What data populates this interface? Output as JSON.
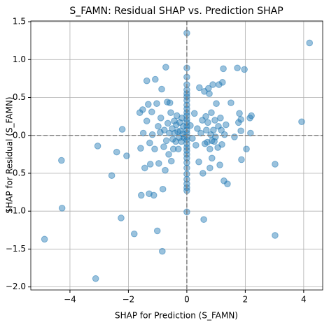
{
  "chart_data": {
    "type": "scatter",
    "title": "S_FAMN: Residual SHAP vs. Prediction SHAP",
    "x_label": "SHAP for Prediction (S_FAMN)",
    "y_label": "SHAP for Residual (S_FAMN)",
    "color": "#1f77b4",
    "grid": true,
    "reference_lines": {
      "x": 0,
      "y": 0
    },
    "xlim": [
      -5.34,
      4.65
    ],
    "ylim": [
      -2.04,
      1.51
    ],
    "xticks": [
      {
        "value": -4,
        "label": "−4"
      },
      {
        "value": -2,
        "label": "−2"
      },
      0,
      2,
      4
    ],
    "yticks": [
      {
        "value": -2,
        "label": "−2.0"
      },
      {
        "value": -1.5,
        "label": "−1.5"
      },
      {
        "value": -1,
        "label": "−1.0"
      },
      {
        "value": -0.5,
        "label": "−0.5"
      },
      {
        "value": 0,
        "label": "0.0"
      },
      {
        "value": 0.5,
        "label": "0.5"
      },
      {
        "value": 1,
        "label": "1.0"
      },
      {
        "value": 1.5,
        "label": "1.5"
      }
    ],
    "x": [
      4.2,
      3.93,
      3.02,
      3.02,
      -4.87,
      -4.27,
      -4.29,
      -3.12,
      -3.05,
      -2.57,
      -2.4,
      -2.25,
      -2.21,
      -2.06,
      -1.8,
      -1.61,
      -1.58,
      -1.56,
      -1.51,
      -1.49,
      -1.44,
      -1.37,
      -1.37,
      -1.32,
      -1.29,
      -1.27,
      -1.25,
      -1.2,
      -1.18,
      -1.13,
      -1.1,
      -1.08,
      -1.03,
      -1.01,
      -0.98,
      -0.96,
      -0.91,
      -0.89,
      -0.86,
      -0.84,
      -0.82,
      -0.79,
      -0.77,
      -0.74,
      -0.72,
      -0.7,
      -0.67,
      -0.65,
      -0.62,
      -0.6,
      -0.58,
      -0.55,
      -0.53,
      -0.5,
      -0.48,
      -0.46,
      -0.43,
      -0.41,
      -0.38,
      -0.36,
      -0.34,
      -0.31,
      -0.29,
      -0.26,
      -0.24,
      -0.22,
      -0.19,
      -0.17,
      -0.14,
      -0.12,
      -0.1,
      0,
      0,
      0,
      0,
      0,
      0,
      0,
      0,
      0,
      0,
      0,
      0,
      0,
      0,
      0,
      0,
      0,
      0,
      0,
      0,
      0,
      0,
      0,
      0,
      0,
      0,
      0,
      0,
      0,
      0,
      0,
      0,
      0.12,
      0.19,
      0.26,
      0.31,
      0.36,
      0.41,
      0.43,
      0.48,
      0.53,
      0.55,
      0.58,
      0.6,
      0.62,
      0.65,
      0.67,
      0.7,
      0.72,
      0.74,
      0.77,
      0.79,
      0.82,
      0.84,
      0.86,
      0.89,
      0.91,
      0.94,
      0.96,
      0.98,
      1.01,
      0.79,
      0.86,
      1.06,
      1.08,
      1.1,
      1.13,
      1.15,
      1.18,
      1.2,
      1.22,
      1.25,
      1.27,
      1.29,
      1.34,
      1.39,
      1.51,
      1.63,
      1.73,
      1.77,
      1.8,
      1.85,
      1.87,
      1.97,
      2.04,
      2.16,
      2.21,
      2.18,
      1.85
    ],
    "y": [
      1.22,
      0.18,
      -0.38,
      -1.32,
      -1.37,
      -0.96,
      -0.33,
      -1.89,
      -0.14,
      -0.53,
      -0.22,
      -1.09,
      0.08,
      -0.27,
      -1.3,
      0.3,
      -0.17,
      -0.79,
      0.34,
      0.03,
      -0.43,
      0.72,
      0.19,
      0.41,
      -0.77,
      -0.1,
      -0.38,
      0.31,
      0.01,
      -0.79,
      -0.18,
      0.74,
      0.42,
      -1.26,
      0.12,
      -0.37,
      0.04,
      0.23,
      0.61,
      -1.53,
      -0.71,
      -0.15,
      0.07,
      -0.46,
      0.9,
      -0.07,
      0.44,
      0.16,
      -0.25,
      0.03,
      0.43,
      0.3,
      -0.34,
      0.09,
      -0.05,
      -0.18,
      0.19,
      0.03,
      -0.08,
      0.14,
      0.26,
      0.05,
      -0.18,
      -0.03,
      0.17,
      0.06,
      -0.08,
      0.23,
      0.02,
      0.12,
      -0.03,
      1.35,
      0.89,
      0.77,
      0.67,
      0.6,
      0.55,
      0.51,
      0.46,
      0.4,
      0.35,
      0.3,
      0.26,
      0.21,
      0.17,
      0.12,
      0.07,
      0.03,
      -0.02,
      -0.06,
      -0.11,
      -0.16,
      -0.2,
      -0.25,
      -0.3,
      -0.36,
      -0.43,
      -0.51,
      -0.58,
      -0.64,
      -0.69,
      -0.73,
      -1.01,
      0.13,
      -0.04,
      0.29,
      -0.13,
      0.09,
      -0.35,
      0.63,
      0.03,
      0.2,
      -0.5,
      -1.11,
      0.58,
      -0.11,
      0.25,
      0.07,
      -0.09,
      0.17,
      0.62,
      0.55,
      -0.18,
      0.01,
      0.3,
      -0.07,
      0.67,
      0.07,
      -0.08,
      0.2,
      -0.02,
      0.42,
      -0.43,
      -0.3,
      -0.16,
      0.12,
      0.67,
      -0.39,
      0.23,
      0.07,
      -0.12,
      0.7,
      0.88,
      -0.6,
      0.01,
      0.14,
      -0.64,
      0.43,
      -0.02,
      0.89,
      0.17,
      0.29,
      0.06,
      -0.32,
      0.87,
      -0.18,
      0.23,
      0.26,
      0.03,
      0.21
    ]
  }
}
